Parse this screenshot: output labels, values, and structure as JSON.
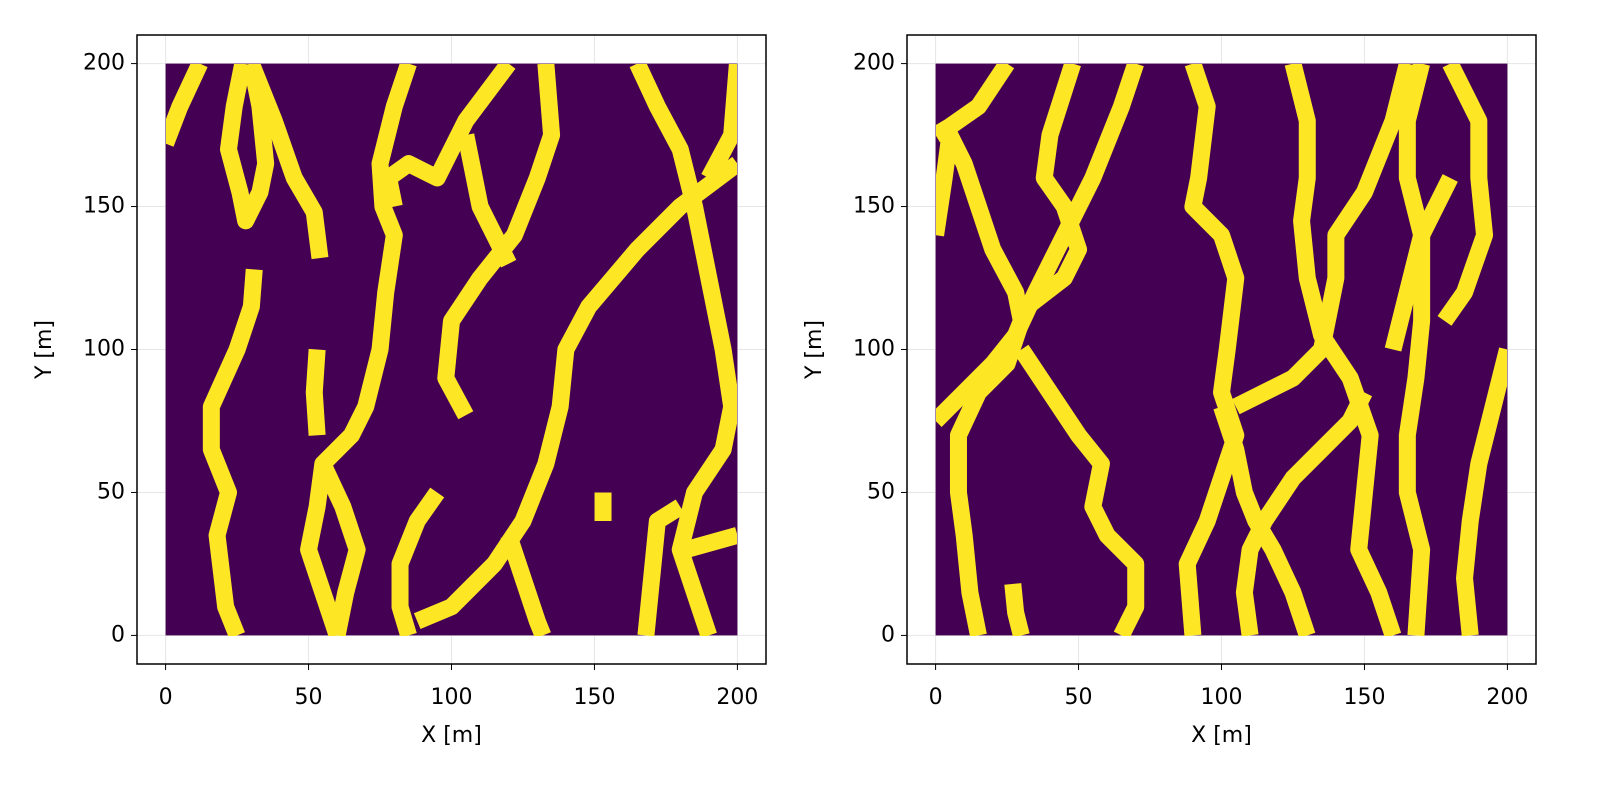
{
  "chart_data": [
    {
      "type": "line",
      "xlabel": "X [m]",
      "ylabel": "Y [m]",
      "xlim": [
        -10,
        210
      ],
      "ylim": [
        -10,
        210
      ],
      "xticks": [
        0,
        50,
        100,
        150,
        200
      ],
      "yticks": [
        0,
        50,
        100,
        150,
        200
      ],
      "grid": true,
      "field": {
        "x": [
          0,
          200
        ],
        "y": [
          0,
          200
        ],
        "color": "#440154"
      },
      "color": "#fde725",
      "series": [
        {
          "x": [
            0,
            5,
            12
          ],
          "y": [
            172,
            185,
            200
          ]
        },
        {
          "x": [
            30,
            38,
            45,
            52,
            54
          ],
          "y": [
            200,
            180,
            160,
            148,
            132
          ]
        },
        {
          "x": [
            27,
            24,
            22,
            26,
            28,
            33,
            35,
            33,
            30
          ],
          "y": [
            200,
            185,
            170,
            155,
            145,
            155,
            165,
            185,
            200
          ]
        },
        {
          "x": [
            31,
            30,
            25,
            16,
            16,
            22,
            18,
            21,
            25
          ],
          "y": [
            128,
            115,
            100,
            80,
            65,
            50,
            35,
            10,
            0
          ]
        },
        {
          "x": [
            85,
            80,
            75,
            76,
            80,
            77,
            75,
            70,
            65,
            55,
            53,
            50,
            55,
            60
          ],
          "y": [
            200,
            185,
            165,
            150,
            140,
            120,
            100,
            80,
            70,
            60,
            45,
            30,
            15,
            0
          ]
        },
        {
          "x": [
            55,
            62,
            67,
            63,
            60
          ],
          "y": [
            60,
            45,
            30,
            15,
            0
          ]
        },
        {
          "x": [
            53,
            52,
            53
          ],
          "y": [
            100,
            85,
            70
          ]
        },
        {
          "x": [
            120,
            105,
            95,
            85,
            78,
            80
          ],
          "y": [
            200,
            180,
            160,
            165,
            160,
            150
          ]
        },
        {
          "x": [
            133,
            135,
            130,
            122,
            110,
            100,
            98,
            105
          ],
          "y": [
            200,
            175,
            160,
            140,
            125,
            110,
            90,
            77
          ]
        },
        {
          "x": [
            105,
            110,
            115,
            120
          ],
          "y": [
            175,
            150,
            140,
            130
          ]
        },
        {
          "x": [
            200,
            180,
            165,
            148,
            140,
            138,
            133,
            125,
            115,
            100,
            88
          ],
          "y": [
            165,
            150,
            135,
            115,
            100,
            80,
            60,
            40,
            25,
            10,
            5
          ]
        },
        {
          "x": [
            95,
            88,
            82,
            82,
            85
          ],
          "y": [
            50,
            40,
            25,
            10,
            0
          ]
        },
        {
          "x": [
            120,
            125,
            130,
            132
          ],
          "y": [
            35,
            20,
            5,
            0
          ]
        },
        {
          "x": [
            165,
            172,
            180,
            185,
            190,
            195,
            198,
            195,
            185,
            180,
            185,
            190
          ],
          "y": [
            200,
            185,
            170,
            150,
            125,
            100,
            80,
            65,
            50,
            30,
            15,
            0
          ]
        },
        {
          "x": [
            180,
            172,
            170,
            168
          ],
          "y": [
            45,
            40,
            20,
            0
          ]
        },
        {
          "x": [
            182,
            200
          ],
          "y": [
            30,
            35
          ]
        },
        {
          "x": [
            200,
            198,
            190
          ],
          "y": [
            200,
            175,
            160
          ]
        },
        {
          "x": [
            153,
            153
          ],
          "y": [
            50,
            40
          ]
        }
      ]
    },
    {
      "type": "line",
      "xlabel": "X [m]",
      "ylabel": "Y [m]",
      "xlim": [
        -10,
        210
      ],
      "ylim": [
        -10,
        210
      ],
      "xticks": [
        0,
        50,
        100,
        150,
        200
      ],
      "yticks": [
        0,
        50,
        100,
        150,
        200
      ],
      "grid": true,
      "field": {
        "x": [
          0,
          200
        ],
        "y": [
          0,
          200
        ],
        "color": "#440154"
      },
      "color": "#fde725",
      "series": [
        {
          "x": [
            25,
            15,
            5,
            0
          ],
          "y": [
            200,
            185,
            178,
            175
          ]
        },
        {
          "x": [
            0,
            3,
            5,
            10,
            15,
            20,
            28,
            30,
            25,
            15,
            8,
            8,
            10,
            12,
            15
          ],
          "y": [
            140,
            160,
            175,
            165,
            150,
            135,
            120,
            110,
            95,
            85,
            70,
            50,
            35,
            15,
            0
          ]
        },
        {
          "x": [
            0,
            10,
            20,
            28,
            35,
            45,
            55,
            65,
            70
          ],
          "y": [
            75,
            85,
            95,
            105,
            120,
            140,
            160,
            185,
            200
          ]
        },
        {
          "x": [
            30,
            40,
            50,
            58,
            55,
            60,
            70,
            70,
            65
          ],
          "y": [
            100,
            85,
            70,
            60,
            45,
            35,
            25,
            10,
            0
          ]
        },
        {
          "x": [
            48,
            40,
            38,
            45,
            50,
            45,
            32,
            28
          ],
          "y": [
            200,
            175,
            160,
            150,
            135,
            125,
            115,
            105
          ]
        },
        {
          "x": [
            27,
            28,
            30
          ],
          "y": [
            18,
            8,
            0
          ]
        },
        {
          "x": [
            90,
            95,
            92,
            90,
            100,
            105,
            102,
            100,
            105,
            100,
            95,
            88,
            90
          ],
          "y": [
            200,
            185,
            160,
            150,
            140,
            125,
            100,
            85,
            70,
            55,
            40,
            25,
            0
          ]
        },
        {
          "x": [
            105,
            125,
            135,
            140,
            140,
            150,
            160,
            165
          ],
          "y": [
            80,
            90,
            100,
            125,
            140,
            155,
            180,
            200
          ]
        },
        {
          "x": [
            125,
            130,
            130,
            128,
            130,
            135,
            145,
            152,
            150,
            148,
            155,
            160
          ],
          "y": [
            200,
            180,
            160,
            145,
            125,
            105,
            90,
            70,
            50,
            30,
            15,
            0
          ]
        },
        {
          "x": [
            110,
            108,
            110,
            115,
            125,
            135,
            145,
            150
          ],
          "y": [
            0,
            15,
            30,
            40,
            55,
            65,
            75,
            85
          ]
        },
        {
          "x": [
            130,
            125,
            118,
            112,
            108,
            105,
            100
          ],
          "y": [
            0,
            15,
            30,
            40,
            50,
            65,
            80
          ]
        },
        {
          "x": [
            180,
            190,
            190,
            192,
            185,
            178
          ],
          "y": [
            200,
            180,
            160,
            140,
            120,
            110
          ]
        },
        {
          "x": [
            160,
            165,
            170,
            180
          ],
          "y": [
            100,
            120,
            140,
            160
          ]
        },
        {
          "x": [
            200,
            195,
            190,
            187,
            185,
            187
          ],
          "y": [
            100,
            80,
            60,
            40,
            20,
            0
          ]
        },
        {
          "x": [
            170,
            165,
            165,
            170,
            170,
            168,
            165,
            165,
            170,
            168
          ],
          "y": [
            200,
            180,
            160,
            140,
            110,
            90,
            70,
            50,
            30,
            0
          ]
        }
      ]
    }
  ]
}
